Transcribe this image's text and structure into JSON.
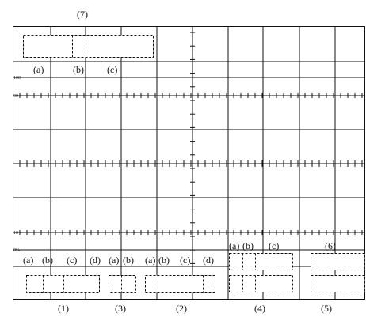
{
  "top_label": "(7)",
  "scale_labels": {
    "l100": "100",
    "l90": "90",
    "l10": "10",
    "l0": "0%"
  },
  "group7": {
    "labels": [
      "(a)",
      "(b)",
      "(c)"
    ]
  },
  "group1": {
    "labels": [
      "(a)",
      "(b)",
      "(c)",
      "(d)"
    ],
    "caption": "(1)"
  },
  "group3": {
    "labels": [
      "(a)",
      "(b)"
    ],
    "caption": "(3)"
  },
  "group2": {
    "labels": [
      "(a)",
      "(b)",
      "(c)",
      "(d)"
    ],
    "caption": "(2)"
  },
  "group4": {
    "labels": [
      "(a)",
      "(b)",
      "(c)"
    ],
    "caption": "(4)"
  },
  "group5": {
    "caption": "(5)"
  },
  "group6": {
    "label": "(6)"
  }
}
